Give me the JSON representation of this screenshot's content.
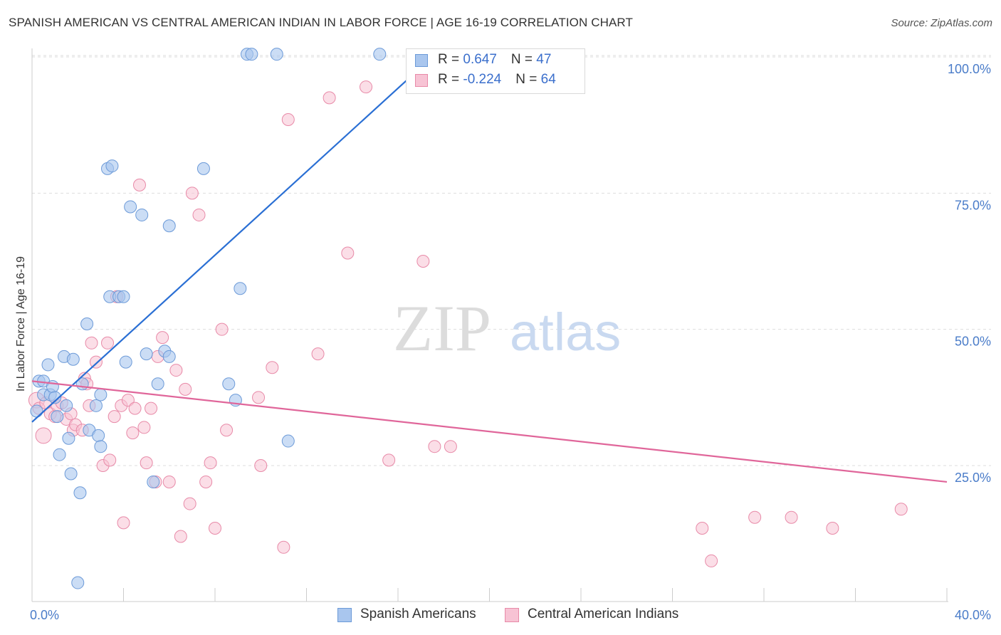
{
  "title": "SPANISH AMERICAN VS CENTRAL AMERICAN INDIAN IN LABOR FORCE | AGE 16-19 CORRELATION CHART",
  "source": "Source: ZipAtlas.com",
  "watermark": {
    "zip": "ZIP",
    "atlas": "atlas"
  },
  "colors": {
    "blue_fill": "#a9c6ee",
    "blue_stroke": "#6c9ad8",
    "blue_line": "#2a6fd4",
    "pink_fill": "#f7c3d4",
    "pink_stroke": "#e88aa8",
    "pink_line": "#e0669a",
    "tick_text": "#4a7cc9",
    "grid": "#dddddd"
  },
  "legend": {
    "rows": [
      {
        "r_label": "R = ",
        "r_value": "0.647",
        "n_label": "N = ",
        "n_value": "47"
      },
      {
        "r_label": "R = ",
        "r_value": "-0.224",
        "n_label": "N = ",
        "n_value": "64"
      }
    ]
  },
  "chart_data": {
    "type": "scatter",
    "title": "SPANISH AMERICAN VS CENTRAL AMERICAN INDIAN IN LABOR FORCE | AGE 16-19 CORRELATION CHART",
    "xlabel": "",
    "ylabel": "In Labor Force | Age 16-19",
    "xlim": [
      0,
      40
    ],
    "ylim": [
      0,
      102
    ],
    "x_tick_labels": [
      "0.0%",
      "40.0%"
    ],
    "y_ticks": [
      25,
      50,
      75,
      100
    ],
    "y_tick_labels": [
      "25.0%",
      "50.0%",
      "75.0%",
      "100.0%"
    ],
    "grid": true,
    "legend_position": "top-center",
    "series": [
      {
        "name": "Spanish Americans",
        "color": "#a9c6ee",
        "trend": {
          "x": [
            0,
            17.5
          ],
          "y": [
            33,
            100
          ]
        },
        "points": [
          [
            0.2,
            35
          ],
          [
            0.3,
            40.5
          ],
          [
            0.5,
            40.5
          ],
          [
            0.5,
            38
          ],
          [
            0.7,
            43.5
          ],
          [
            0.8,
            38
          ],
          [
            0.9,
            39.5
          ],
          [
            1.0,
            37.5
          ],
          [
            1.1,
            34
          ],
          [
            1.2,
            27
          ],
          [
            1.4,
            45
          ],
          [
            1.6,
            30
          ],
          [
            1.7,
            23.5
          ],
          [
            1.8,
            44.5
          ],
          [
            2.1,
            20
          ],
          [
            2.2,
            40
          ],
          [
            2.4,
            51
          ],
          [
            2.5,
            31.5
          ],
          [
            2.8,
            36
          ],
          [
            2.9,
            30.5
          ],
          [
            3.0,
            28.5
          ],
          [
            3.3,
            79.5
          ],
          [
            3.4,
            56
          ],
          [
            3.5,
            80
          ],
          [
            3.8,
            56
          ],
          [
            4.0,
            56
          ],
          [
            4.1,
            44
          ],
          [
            4.3,
            72.5
          ],
          [
            4.8,
            71
          ],
          [
            5.0,
            45.5
          ],
          [
            5.3,
            22
          ],
          [
            5.5,
            40
          ],
          [
            5.8,
            46
          ],
          [
            6.0,
            69
          ],
          [
            6.0,
            45
          ],
          [
            7.5,
            79.5
          ],
          [
            8.6,
            40
          ],
          [
            8.9,
            37
          ],
          [
            9.1,
            57.5
          ],
          [
            9.4,
            100.5
          ],
          [
            9.6,
            100.5
          ],
          [
            10.7,
            100.5
          ],
          [
            11.2,
            29.5
          ],
          [
            15.2,
            100.5
          ],
          [
            2.0,
            3.5
          ],
          [
            3.0,
            38
          ],
          [
            1.5,
            36
          ]
        ]
      },
      {
        "name": "Central American Indians",
        "color": "#f7c3d4",
        "trend": {
          "x": [
            0,
            40
          ],
          "y": [
            40.5,
            22
          ]
        },
        "points": [
          [
            0.2,
            37
          ],
          [
            0.3,
            35.5
          ],
          [
            0.5,
            30.5
          ],
          [
            0.6,
            36.5
          ],
          [
            0.8,
            34.5
          ],
          [
            1.0,
            34
          ],
          [
            1.1,
            36
          ],
          [
            1.3,
            36.5
          ],
          [
            1.5,
            33.5
          ],
          [
            1.7,
            34.5
          ],
          [
            1.8,
            31.5
          ],
          [
            1.9,
            32.5
          ],
          [
            2.2,
            31.5
          ],
          [
            2.3,
            41
          ],
          [
            2.4,
            40
          ],
          [
            2.5,
            36
          ],
          [
            2.6,
            47.5
          ],
          [
            2.8,
            44
          ],
          [
            3.1,
            25
          ],
          [
            3.3,
            47.5
          ],
          [
            3.4,
            26
          ],
          [
            3.6,
            34
          ],
          [
            3.7,
            56
          ],
          [
            3.9,
            36
          ],
          [
            4.0,
            14.5
          ],
          [
            4.2,
            37
          ],
          [
            4.4,
            31
          ],
          [
            4.5,
            35.5
          ],
          [
            4.7,
            76.5
          ],
          [
            4.9,
            32
          ],
          [
            5.0,
            25.5
          ],
          [
            5.2,
            35.5
          ],
          [
            5.4,
            22
          ],
          [
            5.5,
            45
          ],
          [
            5.7,
            48.5
          ],
          [
            6.0,
            22
          ],
          [
            6.3,
            42.5
          ],
          [
            6.5,
            12
          ],
          [
            6.7,
            39
          ],
          [
            6.9,
            18
          ],
          [
            7.0,
            75
          ],
          [
            7.3,
            71
          ],
          [
            7.6,
            22
          ],
          [
            7.8,
            25.5
          ],
          [
            8.0,
            13.5
          ],
          [
            8.3,
            50
          ],
          [
            8.5,
            31.5
          ],
          [
            9.9,
            37.5
          ],
          [
            10.0,
            25
          ],
          [
            10.5,
            43
          ],
          [
            11.0,
            10
          ],
          [
            11.2,
            88.5
          ],
          [
            12.5,
            45.5
          ],
          [
            13.0,
            92.5
          ],
          [
            13.8,
            64
          ],
          [
            14.6,
            94.5
          ],
          [
            15.6,
            26
          ],
          [
            17.1,
            62.5
          ],
          [
            17.6,
            28.5
          ],
          [
            18.3,
            28.5
          ],
          [
            29.3,
            13.5
          ],
          [
            29.7,
            7.5
          ],
          [
            31.6,
            15.5
          ],
          [
            33.2,
            15.5
          ]
        ]
      }
    ],
    "extra_pink_points": [
      [
        35.0,
        13.5
      ],
      [
        38.0,
        17
      ]
    ]
  },
  "bottom_legend": [
    {
      "label": "Spanish Americans"
    },
    {
      "label": "Central American Indians"
    }
  ]
}
